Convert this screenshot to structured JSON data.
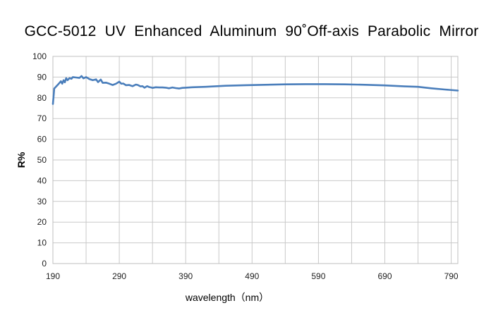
{
  "chart_data": {
    "type": "line",
    "title": "GCC-5012  UV  Enhanced  Aluminum  90˚Off-axis  Parabolic  Mirror",
    "xlabel": "wavelength（nm）",
    "ylabel": "R%",
    "xlim": [
      190,
      800
    ],
    "ylim": [
      0,
      100
    ],
    "xticks": [
      190,
      290,
      390,
      490,
      590,
      690,
      790
    ],
    "yticks": [
      0,
      10,
      20,
      30,
      40,
      50,
      60,
      70,
      80,
      90,
      100
    ],
    "grid": true,
    "line_color": "#4a7ebb",
    "series": [
      {
        "x": [
          190,
          192,
          195,
          198,
          202,
          204,
          206,
          208,
          210,
          212,
          215,
          218,
          220,
          225,
          230,
          233,
          236,
          240,
          245,
          250,
          255,
          258,
          262,
          265,
          270,
          275,
          280,
          285,
          290,
          293,
          296,
          300,
          305,
          310,
          315,
          318,
          322,
          325,
          328,
          332,
          335,
          338,
          340,
          345,
          350,
          355,
          360,
          365,
          370,
          375,
          380,
          385,
          390,
          400,
          420,
          450,
          480,
          510,
          540,
          570,
          600,
          630,
          660,
          690,
          720,
          740,
          760,
          780,
          800
        ],
        "y": [
          77,
          84.5,
          85.5,
          86.5,
          88,
          86.8,
          88.5,
          87.5,
          89.5,
          88.5,
          89.5,
          89.2,
          90,
          89.8,
          89.6,
          90.5,
          89.4,
          90,
          89,
          88.5,
          88.9,
          87.6,
          88.8,
          87.2,
          87.3,
          86.8,
          86.2,
          86.8,
          87.8,
          86.8,
          86.9,
          86.1,
          86.2,
          85.6,
          86.4,
          86.2,
          85.5,
          85.6,
          84.9,
          85.6,
          85.2,
          85.0,
          84.8,
          85.1,
          85.0,
          85.0,
          84.9,
          84.6,
          85.0,
          84.7,
          84.5,
          84.8,
          84.9,
          85.1,
          85.3,
          85.8,
          86.1,
          86.3,
          86.5,
          86.6,
          86.6,
          86.5,
          86.3,
          86.0,
          85.5,
          85.3,
          84.6,
          84.0,
          83.5
        ]
      }
    ]
  }
}
